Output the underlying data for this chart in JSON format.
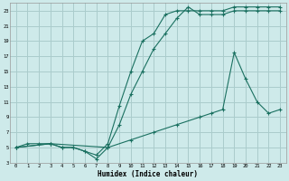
{
  "xlabel": "Humidex (Indice chaleur)",
  "bg_color": "#ceeaea",
  "grid_color": "#aacccc",
  "line_color": "#1a7060",
  "xlim": [
    -0.5,
    23.5
  ],
  "ylim": [
    3,
    24
  ],
  "xticks": [
    0,
    1,
    2,
    3,
    4,
    5,
    6,
    7,
    8,
    9,
    10,
    11,
    12,
    13,
    14,
    15,
    16,
    17,
    18,
    19,
    20,
    21,
    22,
    23
  ],
  "yticks": [
    3,
    5,
    7,
    9,
    11,
    13,
    15,
    17,
    19,
    21,
    23
  ],
  "line1_x": [
    0,
    1,
    2,
    3,
    4,
    5,
    6,
    7,
    8,
    9,
    10,
    11,
    12,
    13,
    14,
    15,
    16,
    17,
    18,
    19,
    20,
    21,
    22,
    23
  ],
  "line1_y": [
    5,
    5.5,
    5.5,
    5.5,
    5,
    5,
    4.5,
    4,
    5.5,
    10.5,
    15,
    19,
    20,
    22.5,
    23,
    23,
    23,
    23,
    23,
    23.5,
    23.5,
    23.5,
    23.5,
    23.5
  ],
  "line2_x": [
    0,
    3,
    4,
    5,
    6,
    7,
    8,
    9,
    10,
    11,
    12,
    13,
    14,
    15,
    16,
    17,
    18,
    19,
    20,
    21,
    22,
    23
  ],
  "line2_y": [
    5,
    5.5,
    5,
    5,
    4.5,
    3.5,
    5,
    8,
    12,
    15,
    18,
    20,
    22,
    23.5,
    22.5,
    22.5,
    22.5,
    23,
    23,
    23,
    23,
    23
  ],
  "line3_x": [
    0,
    3,
    8,
    10,
    12,
    14,
    16,
    17,
    18,
    19,
    20,
    21,
    22,
    23
  ],
  "line3_y": [
    5,
    5.5,
    5,
    6,
    7,
    8,
    9,
    9.5,
    10,
    17.5,
    14,
    11,
    9.5,
    10
  ]
}
